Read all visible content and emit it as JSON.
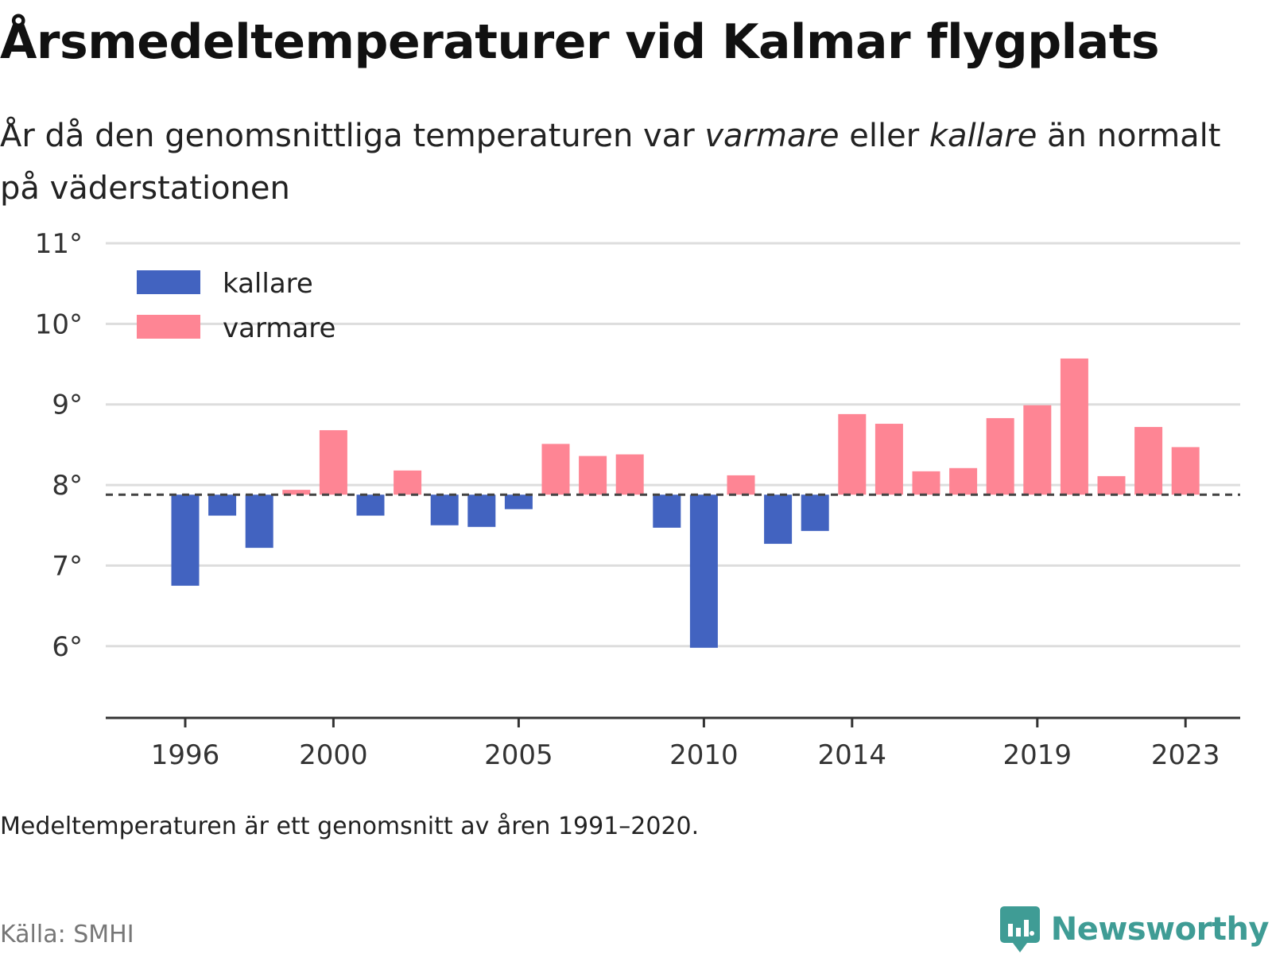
{
  "title": "Årsmedeltemperaturer vid Kalmar flygplats",
  "subtitle": {
    "part1": "År då den genomsnittliga temperaturen var ",
    "warmer": "varmare",
    "part2": " eller ",
    "colder": "kallare",
    "part3": " än normalt på väderstationen"
  },
  "note": "Medeltemperaturen är ett genomsnitt av åren 1991–2020.",
  "source": "Källa: SMHI",
  "brand": {
    "name": "Newsworthy",
    "icon": "newsworthy-logo-icon",
    "color": "#3f9c95"
  },
  "chart_data": {
    "type": "bar",
    "baseline": 7.88,
    "baseline_style": "dashed",
    "ylim": [
      5.1,
      11
    ],
    "y_ticks": [
      6,
      7,
      8,
      9,
      10,
      11
    ],
    "y_tick_labels": [
      "6°",
      "7°",
      "8°",
      "9°",
      "10°",
      "11°"
    ],
    "x_ticks": [
      1996,
      2000,
      2005,
      2010,
      2014,
      2019,
      2023
    ],
    "x_tick_labels": [
      "1996",
      "2000",
      "2005",
      "2010",
      "2014",
      "2019",
      "2023"
    ],
    "grid": true,
    "legend_position": "top-left",
    "colors": {
      "kallare": "#4263c0",
      "varmare": "#fe8594",
      "baseline": "#444444",
      "grid": "#dddddd"
    },
    "series": [
      {
        "name": "kallare"
      },
      {
        "name": "varmare"
      }
    ],
    "years": [
      1996,
      1997,
      1998,
      1999,
      2000,
      2001,
      2002,
      2003,
      2004,
      2005,
      2006,
      2007,
      2008,
      2009,
      2010,
      2011,
      2012,
      2013,
      2014,
      2015,
      2016,
      2017,
      2018,
      2019,
      2020,
      2021,
      2022,
      2023
    ],
    "values": [
      6.75,
      7.62,
      7.22,
      7.94,
      8.68,
      7.62,
      8.18,
      7.5,
      7.48,
      7.7,
      8.51,
      8.36,
      8.38,
      7.47,
      5.98,
      8.12,
      7.27,
      7.43,
      8.88,
      8.76,
      8.17,
      8.21,
      8.83,
      8.99,
      9.57,
      8.11,
      8.72,
      8.47
    ]
  }
}
